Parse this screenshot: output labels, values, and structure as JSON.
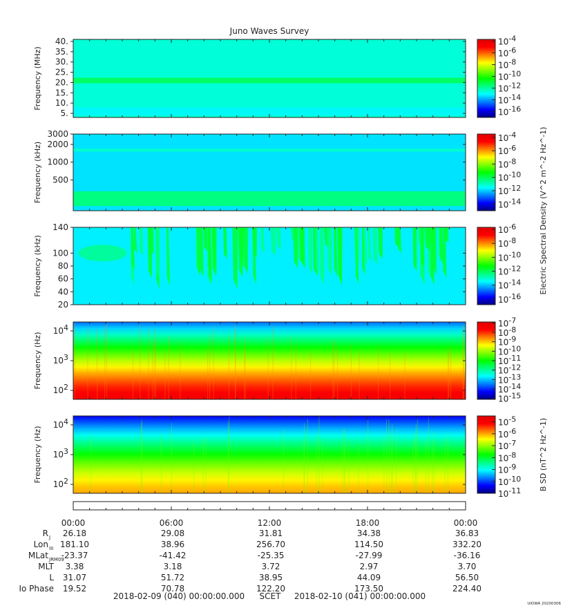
{
  "title": "Juno Waves Survey",
  "watermark": "UIOWA 20200306",
  "footer": {
    "start": "2018-02-09 (040) 00:00:00.000",
    "scet": "SCET",
    "end": "2018-02-10 (041) 00:00:00.000"
  },
  "colors": {
    "palette": [
      "#000080",
      "#0000ff",
      "#0080ff",
      "#00ffff",
      "#00ff80",
      "#00ff00",
      "#80ff00",
      "#ffff00",
      "#ff8000",
      "#ff0000",
      "#e00000"
    ]
  },
  "chart_data": [
    {
      "type": "heatmap",
      "panel": "MHz",
      "ylabel": "Frequency (MHz)",
      "yscale": "linear",
      "ylim": [
        3,
        41
      ],
      "yticks": [
        5,
        10,
        15,
        20,
        25,
        30,
        35,
        40
      ],
      "yticklabels": [
        "5.",
        "10.",
        "15.",
        "20.",
        "25.",
        "30.",
        "35.",
        "40."
      ],
      "colorbar": {
        "ticks": [
          "10^-4",
          "10^-6",
          "10^-8",
          "10^-10",
          "10^-12",
          "10^-14",
          "10^-16"
        ],
        "scale_exponent_range": [
          -17,
          -3.7
        ]
      },
      "description_levels": {
        "background_exp": -12.6,
        "band_center_mhz": 21,
        "band_exp": -11.4
      }
    },
    {
      "type": "heatmap",
      "panel": "kHz_high",
      "ylabel": "Frequency (kHz)",
      "yscale": "log",
      "ylim": [
        150,
        3000
      ],
      "yticks": [
        500,
        1000,
        2000,
        3000
      ],
      "yticklabels": [
        "500",
        "1000",
        "2000",
        "3000"
      ],
      "colorbar": {
        "label": "Electric Spectral Density (V^2 m^-2 Hz^-1)",
        "ticks": [
          "10^-4",
          "10^-6",
          "10^-8",
          "10^-10",
          "10^-12",
          "10^-14"
        ],
        "scale_exponent_range": [
          -15,
          -3.5
        ]
      },
      "description_levels": {
        "background_exp": -11.8,
        "low_band_khz": [
          180,
          320
        ],
        "low_band_exp": -10.4,
        "line_khz": 1600
      }
    },
    {
      "type": "heatmap",
      "panel": "kHz_low",
      "ylabel": "Frequency (kHz)",
      "yscale": "linear",
      "ylim": [
        20,
        140
      ],
      "yticks": [
        20,
        40,
        60,
        80,
        100,
        140
      ],
      "yticklabels": [
        "20",
        "40",
        "60",
        "80",
        "100",
        "140"
      ],
      "colorbar": {
        "ticks": [
          "10^-6",
          "10^-8",
          "10^-10",
          "10^-12",
          "10^-14",
          "10^-16"
        ],
        "scale_exponent_range": [
          -16.8,
          -5.7
        ]
      },
      "description_levels": {
        "background_exp": -13.6,
        "emission_exp": -11.6
      }
    },
    {
      "type": "heatmap",
      "panel": "Hz_E",
      "ylabel": "Frequency (Hz)",
      "yscale": "log",
      "ylim": [
        50,
        20000
      ],
      "yticks": [
        100,
        1000,
        10000
      ],
      "yticklabels": [
        "10^2",
        "10^3",
        "10^4"
      ],
      "colorbar": {
        "ticks": [
          "10^-7",
          "10^-8",
          "10^-9",
          "10^-10",
          "10^-11",
          "10^-12",
          "10^-13",
          "10^-14",
          "10^-15"
        ],
        "scale_exponent_range": [
          -15.1,
          -6.9
        ]
      },
      "description_levels": {
        "low_exp": -7.4,
        "high_exp": -13.6
      }
    },
    {
      "type": "heatmap",
      "panel": "Hz_B",
      "ylabel": "Frequency (Hz)",
      "yscale": "log",
      "ylim": [
        50,
        20000
      ],
      "yticks": [
        100,
        1000,
        10000
      ],
      "yticklabels": [
        "10^2",
        "10^3",
        "10^4"
      ],
      "colorbar": {
        "label": "B SD (nT^2 Hz^-1)",
        "ticks": [
          "10^-5",
          "10^-6",
          "10^-7",
          "10^-8",
          "10^-9",
          "10^-10",
          "10^-11"
        ],
        "scale_exponent_range": [
          -11,
          -4.5
        ]
      },
      "description_levels": {
        "low_exp": -6.0,
        "high_exp": -10.4
      }
    }
  ],
  "xaxis": {
    "ticklabels": [
      "00:00",
      "06:00",
      "12:00",
      "18:00",
      "00:00"
    ],
    "hours": [
      0,
      6,
      12,
      18,
      24
    ]
  },
  "ephemeris": {
    "rows": [
      {
        "label": "R",
        "sub": "J",
        "values": [
          "26.18",
          "29.08",
          "31.81",
          "34.38",
          "36.83"
        ]
      },
      {
        "label": "Lon",
        "sub": "III",
        "values": [
          "181.10",
          "38.96",
          "256.70",
          "114.50",
          "332.20"
        ]
      },
      {
        "label": "MLat",
        "sub": "JRM09",
        "values": [
          "-23.37",
          "-41.42",
          "-25.35",
          "-27.99",
          "-36.16"
        ]
      },
      {
        "label": "MLT",
        "sub": "",
        "values": [
          "3.38",
          "3.18",
          "3.72",
          "2.97",
          "3.70"
        ]
      },
      {
        "label": "L",
        "sub": "",
        "values": [
          "31.07",
          "51.72",
          "38.95",
          "44.09",
          "56.50"
        ]
      },
      {
        "label": "Io Phase",
        "sub": "",
        "values": [
          "19.52",
          "70.78",
          "122.20",
          "173.50",
          "224.40"
        ]
      }
    ]
  }
}
